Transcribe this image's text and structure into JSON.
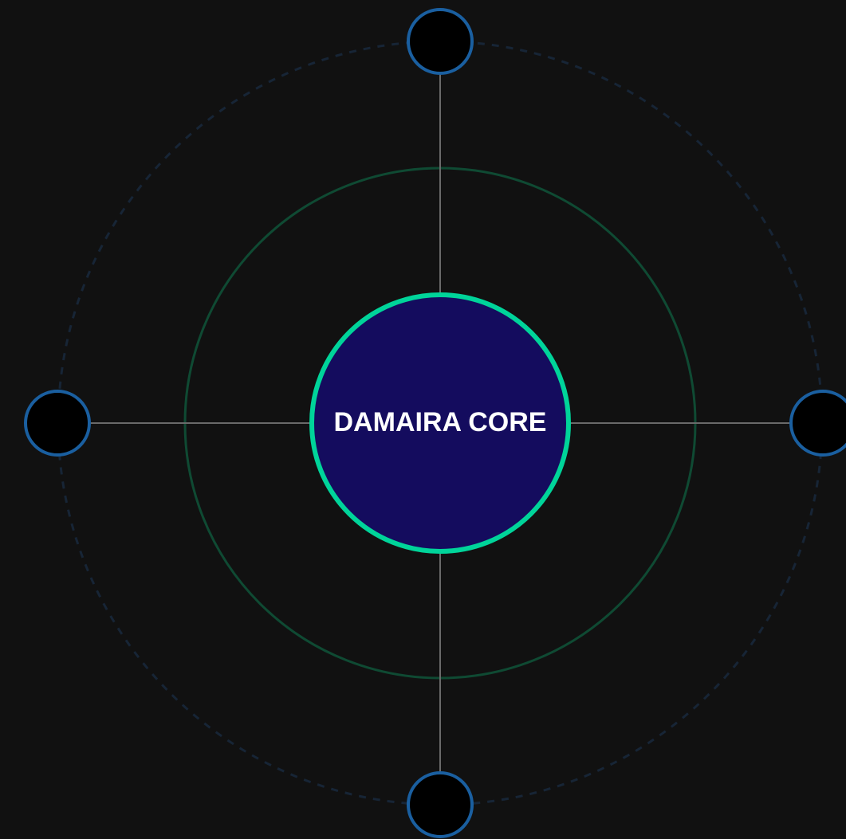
{
  "core": {
    "label": "DAMAIRA CORE"
  }
}
